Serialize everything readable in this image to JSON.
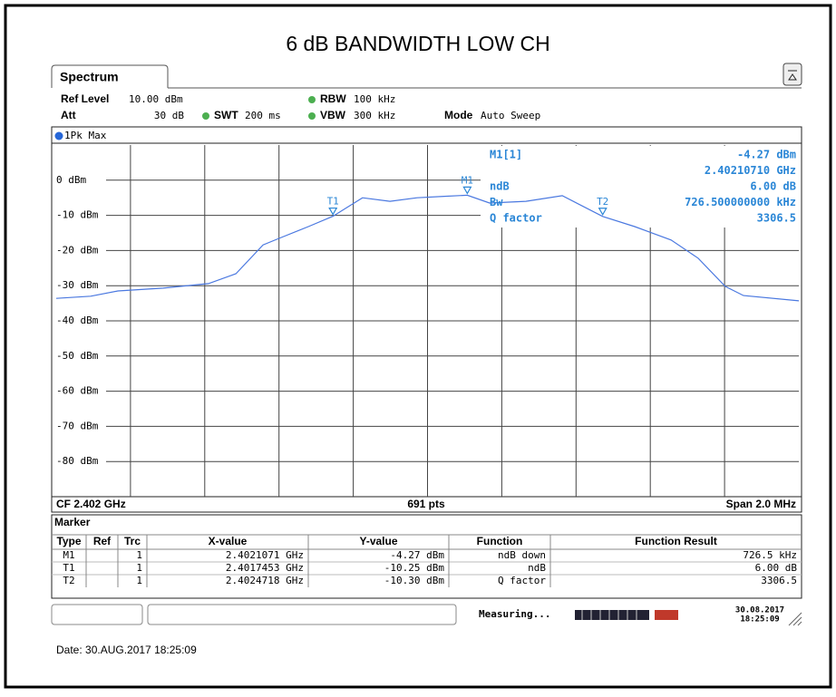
{
  "title": "6 dB BANDWIDTH LOW CH",
  "tab": "Spectrum",
  "settings": {
    "ref_level_label": "Ref Level",
    "ref_level": "10.00 dBm",
    "att_label": "Att",
    "att": "30 dB",
    "swt_label": "SWT",
    "swt": "200 ms",
    "rbw_label": "RBW",
    "rbw": "100 kHz",
    "vbw_label": "VBW",
    "vbw": "300 kHz",
    "mode_label": "Mode",
    "mode": "Auto Sweep"
  },
  "chart_data": {
    "type": "line",
    "xlim": [
      2.401,
      2.403
    ],
    "ylim": [
      -90,
      10
    ],
    "xticks": [
      2.4012,
      2.4014,
      2.4016,
      2.4018,
      2.402,
      2.4022,
      2.4024,
      2.4026,
      2.4028
    ],
    "yticks": [
      {
        "value": 0,
        "label": "0 dBm"
      },
      {
        "value": -10,
        "label": "-10 dBm"
      },
      {
        "value": -20,
        "label": "-20 dBm"
      },
      {
        "value": -30,
        "label": "-30 dBm"
      },
      {
        "value": -40,
        "label": "-40 dBm"
      },
      {
        "value": -50,
        "label": "-50 dBm"
      },
      {
        "value": -60,
        "label": "-60 dBm"
      },
      {
        "value": -70,
        "label": "-70 dBm"
      },
      {
        "value": -80,
        "label": "-80 dBm"
      }
    ],
    "grid": true,
    "x": [
      2.401,
      2.4010928,
      2.401166,
      2.401288,
      2.40141,
      2.401484,
      2.401557,
      2.401606,
      2.401679,
      2.4017453,
      2.401825,
      2.401899,
      2.401972,
      2.402045,
      2.4021071,
      2.402167,
      2.402265,
      2.402363,
      2.4024718,
      2.402558,
      2.402656,
      2.402729,
      2.402802,
      2.402851,
      2.403
    ],
    "series": [
      {
        "name": "1Pk Max",
        "color": "#4a78e0",
        "values": [
          -33.6,
          -33,
          -31.5,
          -30.7,
          -29.4,
          -26.6,
          -18.4,
          -16.3,
          -13.2,
          -10.25,
          -5,
          -6,
          -5,
          -4.6,
          -4.27,
          -6.5,
          -6,
          -4.4,
          -10.3,
          -13.2,
          -17,
          -22.2,
          -30.2,
          -32.8,
          -34.3
        ]
      }
    ],
    "markers": [
      {
        "name": "M1",
        "x": 2.4021071,
        "y": -4.27
      },
      {
        "name": "T1",
        "x": 2.4017453,
        "y": -10.25
      },
      {
        "name": "T2",
        "x": 2.4024718,
        "y": -10.3
      }
    ],
    "marker_info": [
      [
        "M1[1]",
        "-4.27 dBm"
      ],
      [
        "",
        "2.40210710 GHz"
      ],
      [
        "ndB",
        "6.00 dB"
      ],
      [
        "Bw",
        "726.500000000 kHz"
      ],
      [
        "Q factor",
        "3306.5"
      ]
    ],
    "bottom": {
      "cf": "CF 2.402 GHz",
      "points": "691 pts",
      "span": "Span 2.0 MHz"
    }
  },
  "marker_table": {
    "title": "Marker",
    "header": [
      "Type",
      "Ref",
      "Trc",
      "X-value",
      "Y-value",
      "Function",
      "Function Result"
    ],
    "rows": [
      [
        "M1",
        "",
        "1",
        "2.4021071 GHz",
        "-4.27 dBm",
        "ndB down",
        "726.5 kHz"
      ],
      [
        "T1",
        "",
        "1",
        "2.4017453 GHz",
        "-10.25 dBm",
        "ndB",
        "6.00 dB"
      ],
      [
        "T2",
        "",
        "1",
        "2.4024718 GHz",
        "-10.30 dBm",
        "Q factor",
        "3306.5"
      ]
    ]
  },
  "status": {
    "message": "Measuring...",
    "date": "30.08.2017",
    "time": "18:25:09"
  },
  "footer_date": "Date: 30.AUG.2017  18:25:09"
}
